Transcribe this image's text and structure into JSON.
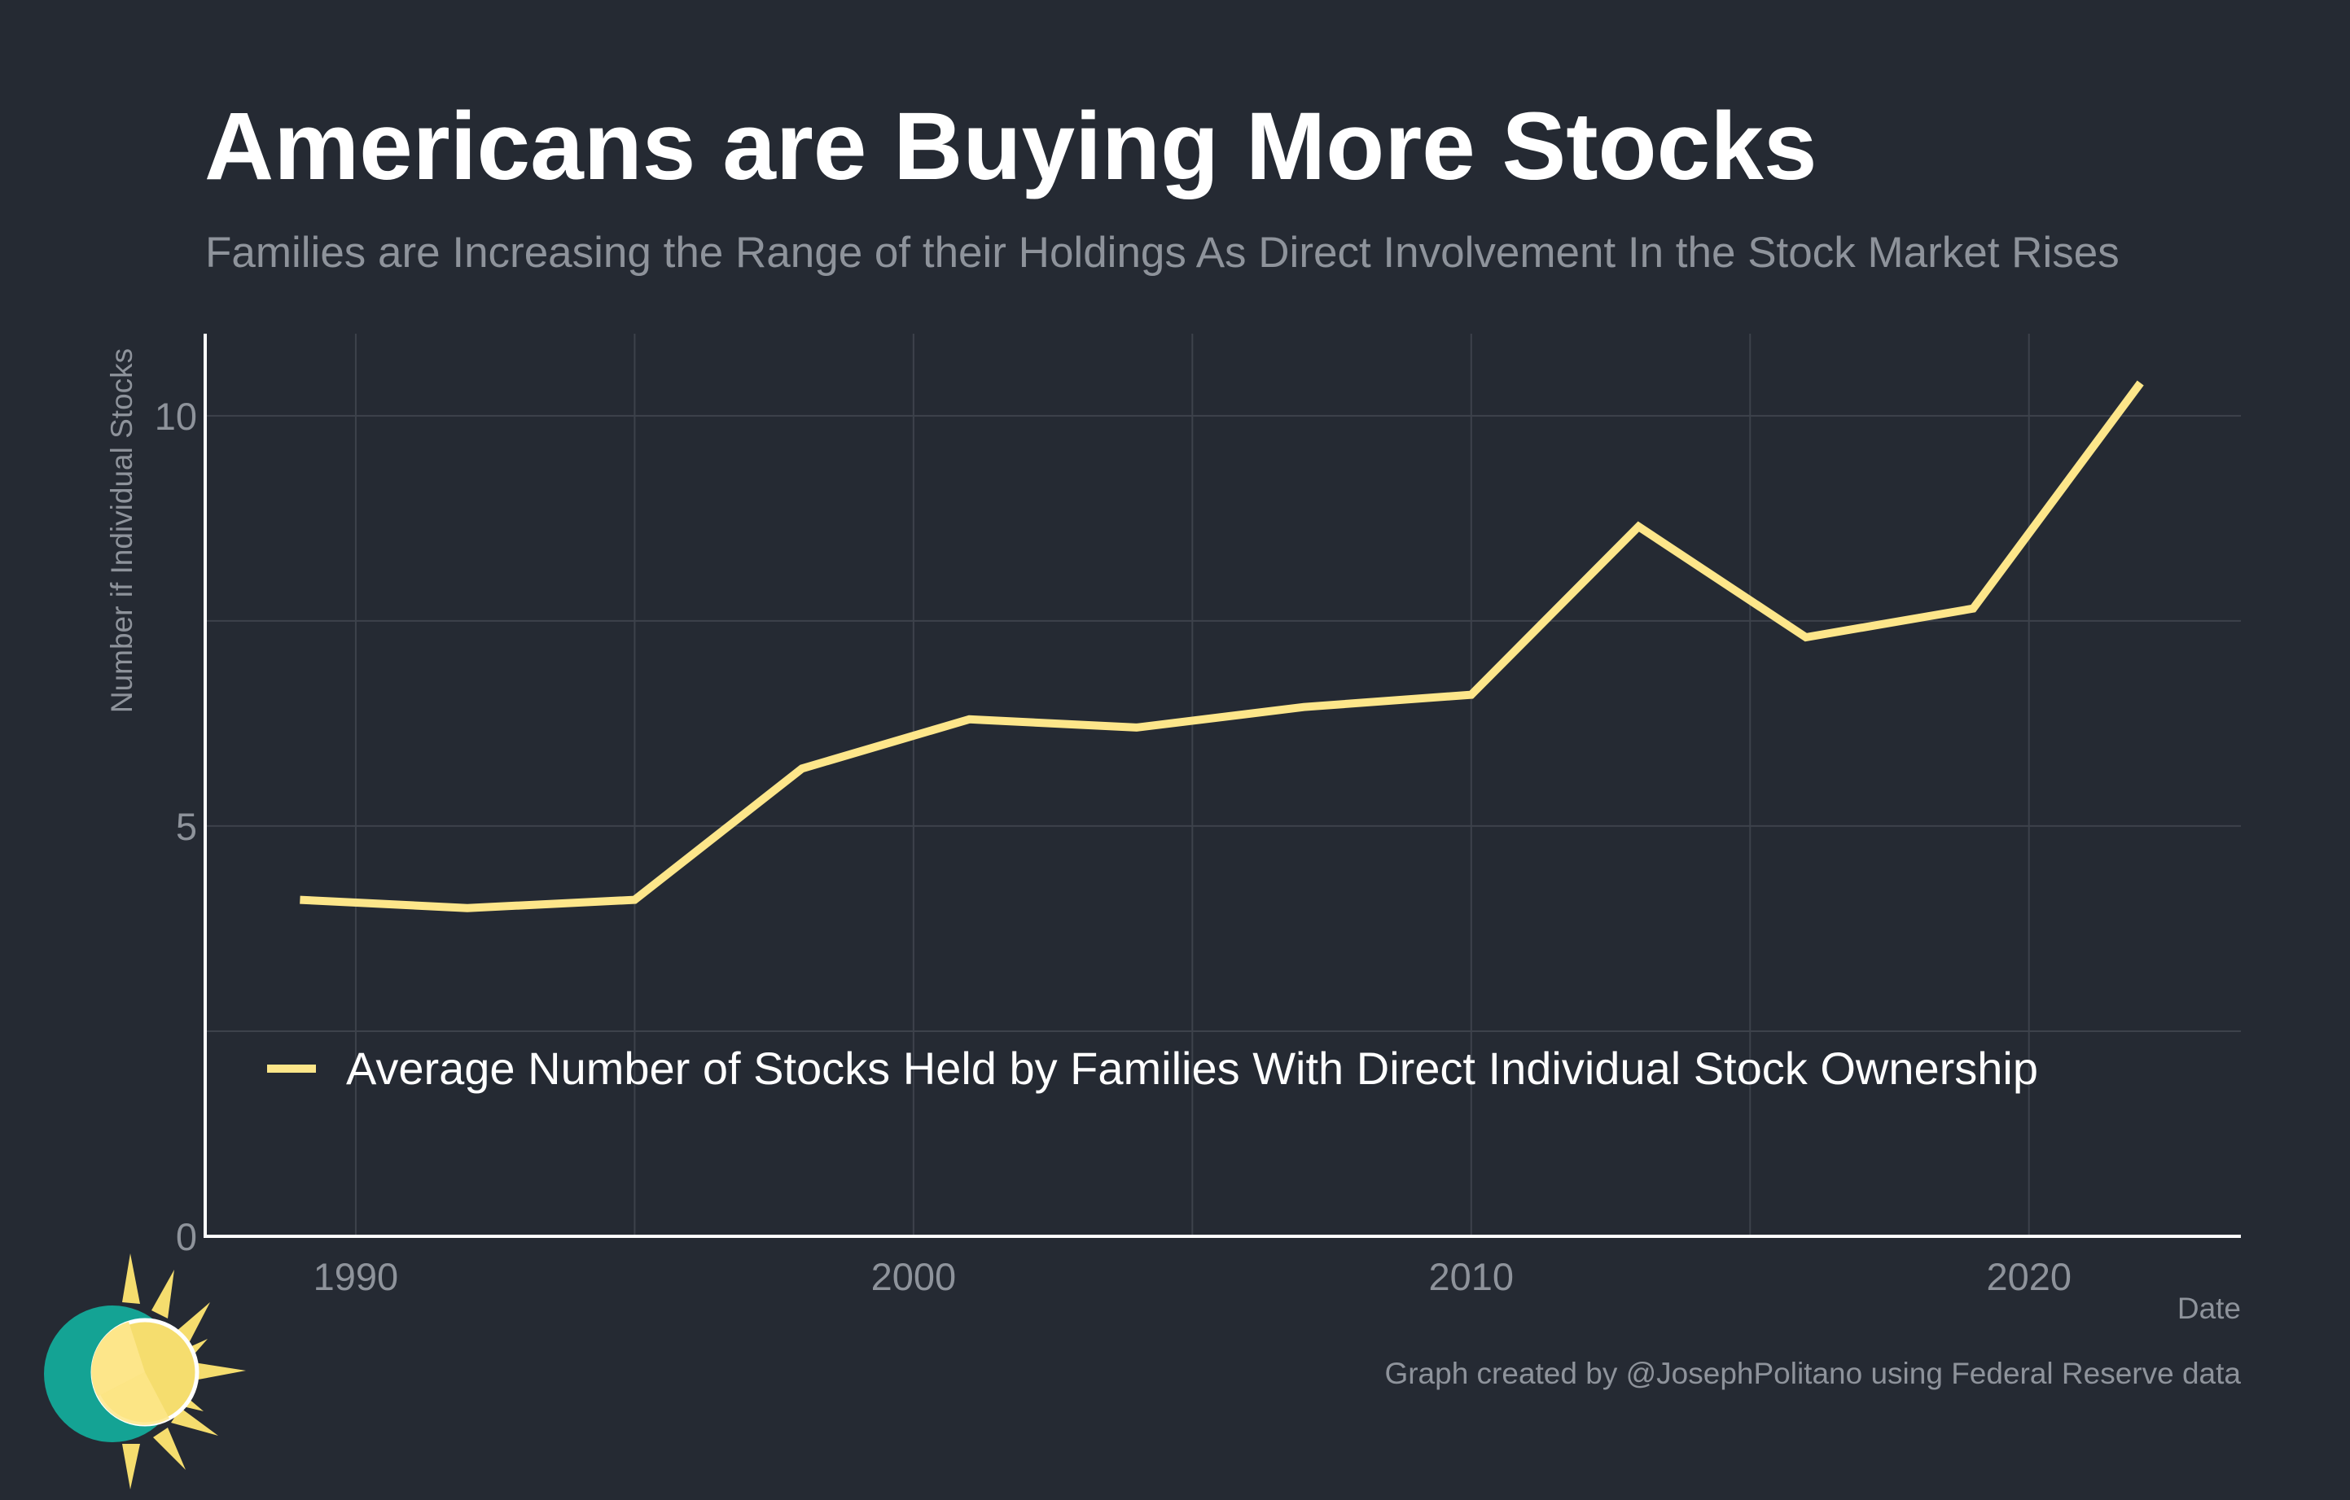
{
  "title": "Americans are Buying More Stocks",
  "subtitle": "Families are Increasing the Range of their Holdings As Direct Involvement In the Stock Market Rises",
  "caption": "Graph created by @JosephPolitano using Federal Reserve data",
  "logo_icon": "sun-clock-logo-icon",
  "colors": {
    "background": "#252a33",
    "line": "#fde68a",
    "grid": "#3d424b",
    "axis": "#ffffff",
    "muted_text": "#8e939b",
    "logo_ring": "#14a394",
    "logo_sun": "#f5dd6e",
    "logo_face": "#fde68a"
  },
  "chart_data": {
    "type": "line",
    "title": "Americans are Buying More Stocks",
    "subtitle": "Families are Increasing the Range of their Holdings As Direct Involvement In the Stock Market Rises",
    "xlabel": "Date",
    "ylabel": "Number if Individual Stocks",
    "xlim": [
      1987.3,
      2023.8
    ],
    "ylim": [
      0,
      11
    ],
    "x_ticks": [
      1990,
      2000,
      2010,
      2020
    ],
    "x_minor_ticks": [
      1995,
      2005,
      2015
    ],
    "y_ticks": [
      0,
      5,
      10
    ],
    "y_minor_ticks": [
      2.5,
      7.5
    ],
    "grid": true,
    "legend_position": "bottom-center inside plot",
    "series": [
      {
        "name": "Average Number of Stocks Held by Families With Direct Individual Stock Ownership",
        "color": "#fde68a",
        "x": [
          1989,
          1992,
          1995,
          1998,
          2001,
          2004,
          2007,
          2010,
          2013,
          2016,
          2019,
          2022
        ],
        "y": [
          4.1,
          4.0,
          4.1,
          5.7,
          6.3,
          6.2,
          6.45,
          6.6,
          8.65,
          7.3,
          7.65,
          10.4
        ]
      }
    ]
  }
}
